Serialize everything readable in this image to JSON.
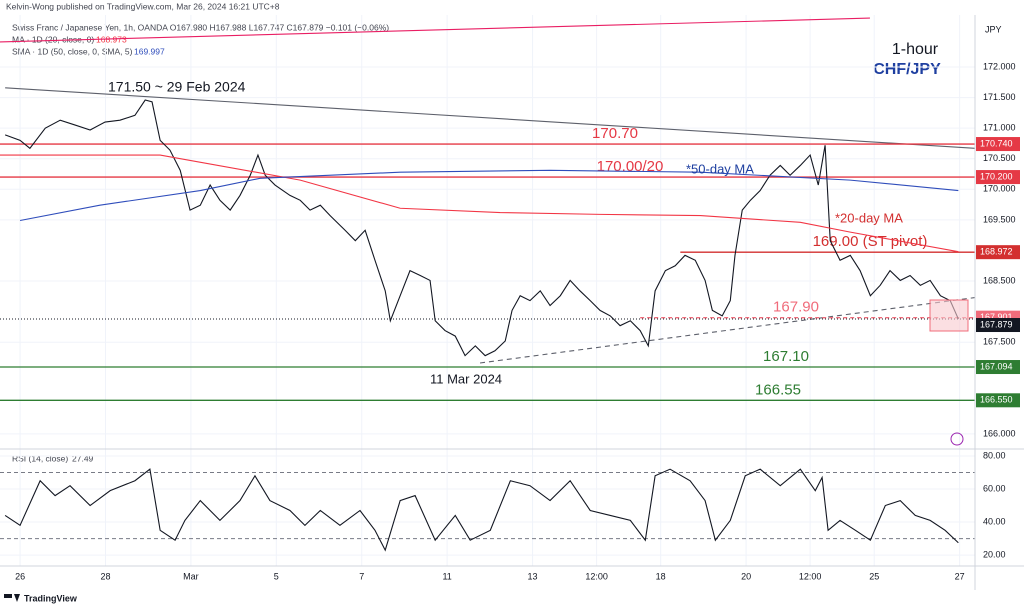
{
  "header": {
    "publisher": "Kelvin-Wong published on TradingView.com, Mar 26, 2024 16:21 UTC+8",
    "symbol": "Swiss Franc / Japanese Yen, 1h, OANDA  O167.980 H167.988 L167.747 C167.879 −0.101 (−0.06%)",
    "ma": "MA · 1D (20, close, 0)",
    "ma_value": "168.973",
    "sma": "SMA · 1D (50, close, 0, SMA, 5)",
    "sma_value": "169.997",
    "currency": "JPY"
  },
  "footer": {
    "brand": "TradingView"
  },
  "chart_data": [
    {
      "type": "line",
      "title": "1-hour",
      "subtitle": "CHF/JPY",
      "xlim": [
        -0.47,
        22.36
      ],
      "ylim": [
        165.77,
        172.85
      ],
      "yticks": [
        {
          "value": 172,
          "label": "172.000"
        },
        {
          "value": 171.5,
          "label": "171.500"
        },
        {
          "value": 171,
          "label": "171.000"
        },
        {
          "value": 170.5,
          "label": "170.500"
        },
        {
          "value": 170,
          "label": "170.000"
        },
        {
          "value": 169.5,
          "label": "169.500"
        },
        {
          "value": 168.5,
          "label": "168.500"
        },
        {
          "value": 167.5,
          "label": "167.500"
        },
        {
          "value": 166,
          "label": "166.000"
        }
      ],
      "grid": true,
      "series": [
        {
          "color": "#131722",
          "x": [
            -0.35,
            0,
            0.23,
            0.59,
            0.94,
            1.29,
            1.64,
            1.99,
            2.34,
            2.69,
            2.93,
            3.09,
            3.28,
            3.51,
            3.75,
            3.98,
            4.22,
            4.45,
            4.68,
            4.92,
            5.15,
            5.39,
            5.57,
            5.74,
            5.97,
            6.32,
            6.56,
            6.79,
            7.03,
            7.26,
            7.61,
            7.85,
            8.08,
            8.31,
            8.55,
            8.67,
            8.9,
            9.13,
            9.37,
            9.6,
            9.72,
            9.95,
            10.19,
            10.42,
            10.66,
            10.89,
            11.12,
            11.36,
            11.52,
            11.71,
            11.94,
            12.18,
            12.41,
            12.65,
            12.88,
            13.11,
            13.35,
            13.58,
            13.82,
            14.05,
            14.29,
            14.52,
            14.71,
            14.87,
            15.11,
            15.34,
            15.57,
            15.81,
            16.04,
            16.21,
            16.44,
            16.63,
            16.74,
            16.91,
            17.1,
            17.33,
            17.56,
            17.8,
            18.03,
            18.27,
            18.5,
            18.69,
            18.85,
            18.97,
            19.2,
            19.44,
            19.67,
            19.91,
            20.14,
            20.37,
            20.61,
            20.84,
            21.08,
            21.31,
            21.55,
            21.78,
            21.97
          ],
          "values": [
            170.89,
            170.8,
            170.67,
            171.0,
            171.13,
            171.05,
            170.97,
            171.1,
            171.13,
            171.21,
            171.46,
            171.43,
            170.8,
            170.64,
            170.31,
            169.66,
            169.74,
            170.07,
            169.82,
            169.66,
            169.9,
            170.23,
            170.56,
            170.23,
            170.07,
            169.9,
            169.82,
            169.66,
            169.74,
            169.57,
            169.33,
            169.16,
            169.33,
            168.84,
            168.34,
            167.85,
            168.26,
            168.67,
            168.59,
            168.51,
            167.85,
            167.69,
            167.6,
            167.28,
            167.44,
            167.28,
            167.36,
            167.52,
            168.02,
            168.26,
            168.18,
            168.34,
            168.1,
            168.26,
            168.51,
            168.34,
            168.18,
            168.02,
            167.93,
            167.77,
            167.85,
            167.69,
            167.44,
            168.34,
            168.67,
            168.75,
            168.92,
            168.84,
            168.51,
            168.02,
            167.93,
            168.18,
            168.92,
            169.66,
            169.82,
            169.98,
            170.23,
            170.39,
            170.23,
            170.39,
            170.56,
            170.07,
            170.72,
            169.16,
            168.84,
            168.92,
            168.67,
            168.26,
            168.43,
            168.67,
            168.51,
            168.59,
            168.43,
            168.51,
            168.26,
            168.18,
            167.88
          ]
        },
        {
          "color": "#f23645",
          "x": [
            -0.47,
            3.28,
            6.56,
            8.9,
            11.24,
            13.58,
            15.93,
            18.27,
            19.44,
            21.97
          ],
          "values": [
            170.56,
            170.56,
            170.15,
            169.69,
            169.62,
            169.59,
            169.57,
            169.46,
            169.3,
            168.98
          ]
        },
        {
          "color": "#2f4dbb",
          "x": [
            0,
            1.87,
            4.22,
            5.62,
            8.9,
            12.41,
            15.93,
            19.44,
            21.97
          ],
          "values": [
            169.49,
            169.74,
            169.98,
            170.18,
            170.28,
            170.31,
            170.28,
            170.15,
            169.98
          ]
        },
        {
          "color": "#e91e63",
          "x": [
            -0.47,
            19.9
          ],
          "values": [
            172.41,
            172.8
          ]
        }
      ],
      "trendlines": [
        {
          "color": "#5d606b",
          "dash": false,
          "x": [
            -0.35,
            22.36
          ],
          "values": [
            171.66,
            170.67
          ]
        },
        {
          "color": "#5d606b",
          "dash": true,
          "x": [
            10.77,
            22.36
          ],
          "values": [
            167.16,
            168.23
          ]
        }
      ],
      "levels": [
        {
          "value": 170.74,
          "tag": "170.740",
          "note": "170.70",
          "color": "#e53945"
        },
        {
          "value": 170.2,
          "tag": "170.200",
          "note": "170.00/20",
          "color": "#e53945"
        },
        {
          "value": 168.972,
          "tag": "168.972",
          "note": "169.00 (ST pivot)",
          "color": "#d32f2f",
          "from": 15.46
        },
        {
          "value": 167.901,
          "tag": "167.901",
          "note": "167.90",
          "color": "#f06c7b",
          "from": 14.52,
          "dash": true
        },
        {
          "value": 167.094,
          "tag": "167.094",
          "note": "167.10",
          "color": "#2e7d32"
        },
        {
          "value": 166.55,
          "tag": "166.550",
          "note": "166.55",
          "color": "#2e7d32"
        }
      ],
      "last": {
        "value": 167.879,
        "tag": "167.879",
        "color": "#131722"
      },
      "annotations": [
        "171.50 ~ 29 Feb 2024",
        "11 Mar 2024",
        "*50-day MA",
        "*20-day MA"
      ]
    },
    {
      "type": "line",
      "title": "RSI (14, close)",
      "value": 27.49,
      "xlim": [
        -0.47,
        22.36
      ],
      "ylim": [
        14,
        82.4
      ],
      "yticks": [
        {
          "value": 80,
          "label": "80.00"
        },
        {
          "value": 60,
          "label": "60.00"
        },
        {
          "value": 40,
          "label": "40.00"
        },
        {
          "value": 20,
          "label": "20.00"
        }
      ],
      "bands": [
        70,
        30
      ],
      "xticks": [
        {
          "value": 0,
          "label": "26"
        },
        {
          "value": 2,
          "label": "28"
        },
        {
          "value": 4,
          "label": "Mar"
        },
        {
          "value": 6,
          "label": "5"
        },
        {
          "value": 8,
          "label": "7"
        },
        {
          "value": 10,
          "label": "11"
        },
        {
          "value": 12,
          "label": "13"
        },
        {
          "value": 13.5,
          "label": "12:00"
        },
        {
          "value": 15,
          "label": "18"
        },
        {
          "value": 17,
          "label": "20"
        },
        {
          "value": 18.5,
          "label": "12:00"
        },
        {
          "value": 20,
          "label": "25"
        },
        {
          "value": 22,
          "label": "27"
        }
      ],
      "series": [
        {
          "color": "#131722",
          "x": [
            -0.35,
            0,
            0.47,
            0.82,
            1.17,
            1.64,
            2.11,
            2.69,
            3.04,
            3.28,
            3.63,
            3.86,
            4.22,
            4.68,
            5.15,
            5.5,
            5.85,
            6.32,
            6.67,
            7.03,
            7.49,
            7.96,
            8.31,
            8.55,
            8.9,
            9.25,
            9.72,
            10.19,
            10.54,
            11.01,
            11.48,
            11.94,
            12.41,
            12.88,
            13.35,
            13.82,
            14.29,
            14.64,
            14.87,
            15.22,
            15.69,
            16.04,
            16.28,
            16.63,
            16.98,
            17.33,
            17.8,
            18.27,
            18.62,
            18.78,
            18.92,
            19.2,
            19.56,
            19.91,
            20.26,
            20.61,
            20.96,
            21.31,
            21.66,
            21.97
          ],
          "values": [
            44,
            38,
            65,
            56,
            62,
            50,
            59,
            65,
            72,
            35,
            29,
            41,
            53,
            41,
            53,
            68,
            53,
            47,
            38,
            47,
            38,
            47,
            35,
            23,
            53,
            56,
            29,
            44,
            29,
            35,
            65,
            62,
            53,
            65,
            47,
            44,
            41,
            29,
            68,
            72,
            65,
            53,
            29,
            41,
            68,
            72,
            62,
            72,
            59,
            67,
            35,
            41,
            35,
            29,
            50,
            53,
            44,
            41,
            35,
            27.49
          ]
        }
      ]
    }
  ]
}
